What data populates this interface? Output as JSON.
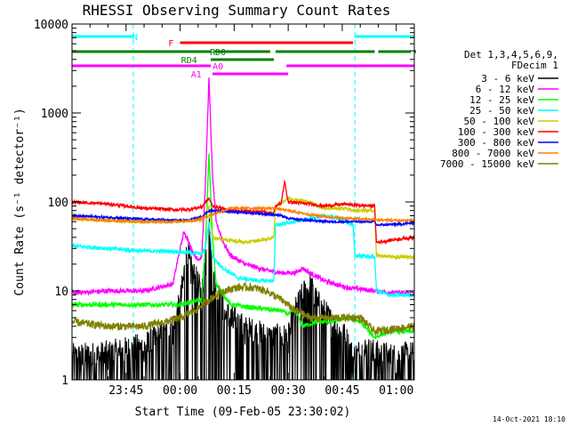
{
  "chart_data": {
    "type": "line",
    "title": "RHESSI Observing Summary Count Rates",
    "xlabel": "Start Time (09-Feb-05 23:30:02)",
    "ylabel": "Count Rate (s⁻¹ detector⁻¹)",
    "timestamp": "14-Oct-2021 18:10",
    "x_unit": "minutes after 23:30:02",
    "xlim": [
      0,
      95
    ],
    "ylim": [
      1,
      10000
    ],
    "yscale": "log",
    "x_ticks": [
      {
        "at": 15,
        "label": "23:45"
      },
      {
        "at": 30,
        "label": "00:00"
      },
      {
        "at": 45,
        "label": "00:15"
      },
      {
        "at": 60,
        "label": "00:30"
      },
      {
        "at": 75,
        "label": "00:45"
      },
      {
        "at": 90,
        "label": "01:00"
      }
    ],
    "y_ticks": [
      {
        "at": 1,
        "label": "1"
      },
      {
        "at": 10,
        "label": "10"
      },
      {
        "at": 100,
        "label": "100"
      },
      {
        "at": 1000,
        "label": "1000"
      },
      {
        "at": 10000,
        "label": "10000"
      }
    ],
    "legend_header": [
      "Det 1,3,4,5,6,9,",
      "FDecim 1"
    ],
    "legend_position": "right",
    "series": [
      {
        "name": "3 - 6 keV",
        "color": "#000000",
        "noise": 0.9,
        "points": [
          [
            0,
            1.2
          ],
          [
            10,
            1.3
          ],
          [
            20,
            1.6
          ],
          [
            28,
            2.5
          ],
          [
            30,
            5
          ],
          [
            32,
            20
          ],
          [
            33,
            12
          ],
          [
            35,
            8
          ],
          [
            36,
            6
          ],
          [
            37,
            15
          ],
          [
            38,
            40
          ],
          [
            39,
            10
          ],
          [
            42,
            4
          ],
          [
            48,
            2.5
          ],
          [
            55,
            2
          ],
          [
            60,
            2
          ],
          [
            62,
            4
          ],
          [
            64,
            6
          ],
          [
            66,
            8
          ],
          [
            68,
            5
          ],
          [
            72,
            3
          ],
          [
            76,
            2
          ],
          [
            78,
            1.2
          ],
          [
            81,
            1.5
          ],
          [
            85,
            1.3
          ],
          [
            90,
            1.2
          ],
          [
            95,
            1.3
          ]
        ]
      },
      {
        "name": "6 - 12 keV",
        "color": "#ff00ff",
        "noise": 0.06,
        "points": [
          [
            0,
            9.5
          ],
          [
            10,
            10
          ],
          [
            20,
            10
          ],
          [
            28,
            12
          ],
          [
            30,
            30
          ],
          [
            31,
            45
          ],
          [
            32,
            40
          ],
          [
            33,
            30
          ],
          [
            35,
            22
          ],
          [
            36,
            25
          ],
          [
            37,
            150
          ],
          [
            38,
            2500
          ],
          [
            39,
            200
          ],
          [
            40,
            60
          ],
          [
            42,
            35
          ],
          [
            44,
            25
          ],
          [
            48,
            20
          ],
          [
            54,
            17
          ],
          [
            58,
            16
          ],
          [
            62,
            16
          ],
          [
            64,
            18
          ],
          [
            66,
            16
          ],
          [
            70,
            13
          ],
          [
            76,
            11
          ],
          [
            84,
            10
          ],
          [
            90,
            9.5
          ],
          [
            95,
            9.5
          ]
        ]
      },
      {
        "name": "12 - 25 keV",
        "color": "#00ff00",
        "noise": 0.06,
        "points": [
          [
            0,
            7
          ],
          [
            10,
            7
          ],
          [
            20,
            7
          ],
          [
            30,
            7
          ],
          [
            36,
            8
          ],
          [
            37,
            30
          ],
          [
            38,
            350
          ],
          [
            39,
            40
          ],
          [
            40,
            12
          ],
          [
            44,
            7
          ],
          [
            50,
            6.5
          ],
          [
            58,
            6
          ],
          [
            60,
            5.5
          ],
          [
            62,
            6
          ],
          [
            64,
            4
          ],
          [
            68,
            4.5
          ],
          [
            72,
            4.5
          ],
          [
            76,
            5
          ],
          [
            80,
            4.5
          ],
          [
            84,
            3
          ],
          [
            88,
            3.5
          ],
          [
            95,
            3.5
          ]
        ]
      },
      {
        "name": "25 - 50 keV",
        "color": "#00ffff",
        "noise": 0.05,
        "points": [
          [
            0,
            32
          ],
          [
            10,
            30
          ],
          [
            20,
            28
          ],
          [
            28,
            28
          ],
          [
            32,
            27
          ],
          [
            36,
            26
          ],
          [
            37,
            30
          ],
          [
            38,
            60
          ],
          [
            39,
            24
          ],
          [
            42,
            18
          ],
          [
            46,
            14
          ],
          [
            52,
            13
          ],
          [
            56,
            13
          ],
          [
            56.5,
            55
          ],
          [
            60,
            58
          ],
          [
            66,
            65
          ],
          [
            70,
            70
          ],
          [
            74,
            66
          ],
          [
            78,
            55
          ],
          [
            78.5,
            25
          ],
          [
            84,
            24
          ],
          [
            84.5,
            10
          ],
          [
            88,
            9
          ],
          [
            95,
            9
          ]
        ]
      },
      {
        "name": "50 - 100 keV",
        "color": "#cccc00",
        "noise": 0.04,
        "points": [
          [
            0,
            65
          ],
          [
            10,
            62
          ],
          [
            20,
            60
          ],
          [
            28,
            60
          ],
          [
            32,
            62
          ],
          [
            36,
            62
          ],
          [
            38,
            90
          ],
          [
            39,
            40
          ],
          [
            42,
            38
          ],
          [
            48,
            35
          ],
          [
            54,
            38
          ],
          [
            56,
            40
          ],
          [
            56.5,
            90
          ],
          [
            60,
            110
          ],
          [
            66,
            100
          ],
          [
            70,
            85
          ],
          [
            76,
            85
          ],
          [
            78,
            80
          ],
          [
            84,
            80
          ],
          [
            84.5,
            25
          ],
          [
            90,
            24
          ],
          [
            95,
            24
          ]
        ]
      },
      {
        "name": "100 - 300 keV",
        "color": "#ff0000",
        "noise": 0.04,
        "points": [
          [
            0,
            100
          ],
          [
            10,
            95
          ],
          [
            20,
            85
          ],
          [
            28,
            82
          ],
          [
            32,
            82
          ],
          [
            36,
            88
          ],
          [
            38,
            110
          ],
          [
            39,
            90
          ],
          [
            44,
            80
          ],
          [
            52,
            78
          ],
          [
            56,
            75
          ],
          [
            56.5,
            90
          ],
          [
            58,
            95
          ],
          [
            59,
            170
          ],
          [
            60,
            100
          ],
          [
            66,
            95
          ],
          [
            70,
            90
          ],
          [
            76,
            95
          ],
          [
            78,
            92
          ],
          [
            84,
            90
          ],
          [
            84.5,
            35
          ],
          [
            90,
            38
          ],
          [
            95,
            40
          ]
        ]
      },
      {
        "name": "300 - 800 keV",
        "color": "#0000ff",
        "noise": 0.03,
        "points": [
          [
            0,
            70
          ],
          [
            10,
            67
          ],
          [
            20,
            64
          ],
          [
            28,
            62
          ],
          [
            32,
            62
          ],
          [
            36,
            68
          ],
          [
            38,
            80
          ],
          [
            44,
            78
          ],
          [
            50,
            75
          ],
          [
            56,
            72
          ],
          [
            58,
            70
          ],
          [
            60,
            65
          ],
          [
            66,
            62
          ],
          [
            72,
            60
          ],
          [
            78,
            60
          ],
          [
            84,
            60
          ],
          [
            84.5,
            55
          ],
          [
            90,
            56
          ],
          [
            95,
            58
          ]
        ]
      },
      {
        "name": "800 - 7000 keV",
        "color": "#ff8000",
        "noise": 0.03,
        "points": [
          [
            0,
            65
          ],
          [
            10,
            62
          ],
          [
            20,
            60
          ],
          [
            28,
            60
          ],
          [
            34,
            62
          ],
          [
            38,
            70
          ],
          [
            44,
            85
          ],
          [
            50,
            85
          ],
          [
            56,
            85
          ],
          [
            60,
            80
          ],
          [
            66,
            72
          ],
          [
            72,
            67
          ],
          [
            78,
            65
          ],
          [
            84,
            63
          ],
          [
            90,
            62
          ],
          [
            95,
            62
          ]
        ]
      },
      {
        "name": "7000 - 15000 keV",
        "color": "#808000",
        "noise": 0.1,
        "points": [
          [
            0,
            4.5
          ],
          [
            10,
            4
          ],
          [
            20,
            4
          ],
          [
            26,
            4.5
          ],
          [
            30,
            5
          ],
          [
            34,
            6
          ],
          [
            38,
            8
          ],
          [
            42,
            10
          ],
          [
            46,
            11
          ],
          [
            50,
            11
          ],
          [
            54,
            10
          ],
          [
            58,
            8
          ],
          [
            62,
            6
          ],
          [
            66,
            5
          ],
          [
            70,
            5
          ],
          [
            76,
            5
          ],
          [
            80,
            5
          ],
          [
            84,
            3.5
          ],
          [
            90,
            3.8
          ],
          [
            95,
            4
          ]
        ]
      }
    ],
    "flags": [
      {
        "label": "N",
        "color": "#00ffff",
        "level": 0,
        "label_at": 17.5,
        "segments": [
          [
            0,
            17
          ],
          [
            78.5,
            95
          ]
        ],
        "edges": [
          0,
          17,
          78.5,
          95
        ]
      },
      {
        "label": "F",
        "color": "#ff0000",
        "level": 1,
        "label_at": 27.5,
        "segments": [
          [
            30,
            78
          ]
        ]
      },
      {
        "label": "RD0",
        "color": "#008000",
        "level": 2,
        "label_at": 40.5,
        "segments": [
          [
            0,
            38.5
          ],
          [
            39.5,
            55
          ],
          [
            56.5,
            84
          ],
          [
            85,
            94
          ],
          [
            95,
            95
          ]
        ]
      },
      {
        "label": "RD4",
        "color": "#008000",
        "level": 3,
        "label_at": 32.5,
        "segments": [
          [
            38.5,
            56
          ]
        ]
      },
      {
        "label": "A0",
        "color": "#ff00ff",
        "level": 4,
        "label_at": 40.5,
        "segments": [
          [
            0,
            38.5
          ],
          [
            59.5,
            95
          ]
        ]
      },
      {
        "label": "A1",
        "color": "#ff00ff",
        "level": 5,
        "label_at": 34.5,
        "segments": [
          [
            39,
            60
          ]
        ]
      }
    ]
  }
}
